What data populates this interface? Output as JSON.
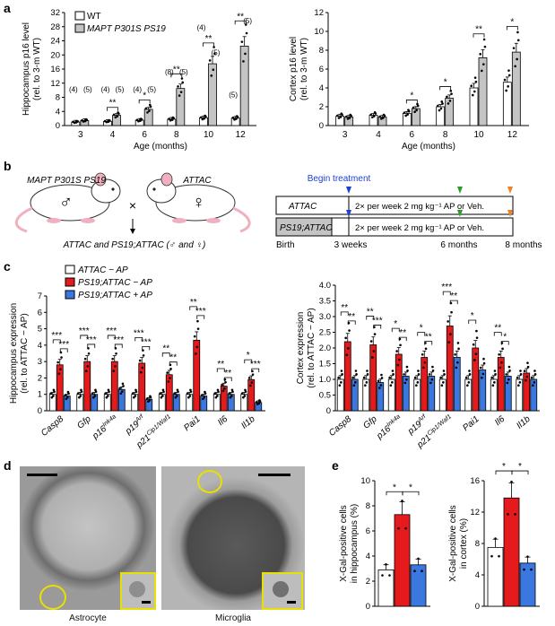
{
  "panels": {
    "a": "a",
    "b": "b",
    "c": "c",
    "d": "d",
    "e": "e"
  },
  "colors": {
    "wt": "#ffffff",
    "ps19": "#c4c4c4",
    "minus_ap": "#ffffff",
    "ps19_minus": "#e41a1c",
    "ps19_plus": "#3a78e0",
    "yellow": "#e8e000",
    "arrow_blue": "#1f3fcf",
    "arrow_green": "#2a9d2a",
    "arrow_orange": "#f08020",
    "mouse_pink": "#f0b0c0"
  },
  "panel_a": {
    "legend": [
      "WT",
      "MAPT P301S PS19"
    ],
    "left": {
      "ylabel_line1": "Hippocampus p16 level",
      "ylabel_line2": "(rel. to 3-m WT)",
      "xlabel": "Age (months)",
      "ages": [
        "3",
        "4",
        "6",
        "8",
        "10",
        "12"
      ],
      "yticks": [
        "0",
        "4",
        "8",
        "12",
        "16",
        "20",
        "24",
        "28",
        "32"
      ],
      "ylim": [
        0,
        32
      ],
      "wt": [
        1.0,
        1.2,
        1.5,
        1.8,
        2.2,
        2.1
      ],
      "ps19": [
        1.4,
        2.9,
        4.6,
        10.5,
        17.5,
        22.5
      ],
      "n_labels": [
        "(4)",
        "(5)",
        "(4)",
        "(5)",
        "(4)",
        "(5)",
        "(8)",
        "(5)",
        "(4)",
        "(5)",
        "(5)",
        "(5)"
      ],
      "sig": [
        "**",
        "*",
        "**",
        "**",
        "**"
      ]
    },
    "right": {
      "ylabel_line1": "Cortex p16 level",
      "ylabel_line2": "(rel. to 3-m WT)",
      "xlabel": "Age (months)",
      "ages": [
        "3",
        "4",
        "6",
        "8",
        "10",
        "12"
      ],
      "yticks": [
        "0",
        "2",
        "4",
        "6",
        "8",
        "10",
        "12"
      ],
      "ylim": [
        0,
        12
      ],
      "wt": [
        1.0,
        1.1,
        1.3,
        2.0,
        4.0,
        4.6
      ],
      "ps19": [
        0.9,
        0.9,
        1.8,
        2.9,
        7.2,
        7.8
      ],
      "sig": [
        "*",
        "*",
        "**",
        "*"
      ]
    }
  },
  "panel_b": {
    "mouse_left": "MAPT P301S PS19",
    "mouse_right": "ATTAC",
    "cross": "×",
    "offspring": "ATTAC and PS19;ATTAC (♂ and ♀)",
    "male": "♂",
    "female": "♀",
    "begin": "Begin treatment",
    "row1_label": "ATTAC",
    "row2_label": "PS19;ATTAC",
    "treatment": "2× per week 2 mg kg⁻¹ AP or Veh.",
    "birth": "Birth",
    "t3": "3 weeks",
    "t6": "6 months",
    "t8": "8 months"
  },
  "panel_c": {
    "legend": [
      "ATTAC − AP",
      "PS19;ATTAC − AP",
      "PS19;ATTAC + AP"
    ],
    "left": {
      "ylabel_line1": "Hippocampus expression",
      "ylabel_line2": "(rel. to ATTAC − AP)",
      "yticks": [
        "0",
        "1",
        "2",
        "3",
        "4",
        "5",
        "6",
        "7"
      ],
      "ylim": [
        0,
        7
      ],
      "genes": [
        "Casp8",
        "Gfp",
        "p16Ink4a",
        "p19Arf",
        "p21Cip1/Waf1",
        "Pai1",
        "Il6",
        "Il1b"
      ],
      "attac_minus": [
        1.0,
        1.0,
        1.0,
        1.0,
        1.0,
        1.0,
        1.0,
        1.0
      ],
      "ps19_minus": [
        2.8,
        3.0,
        3.0,
        2.9,
        2.2,
        4.3,
        1.5,
        1.9
      ],
      "ps19_plus": [
        0.9,
        1.0,
        1.3,
        0.7,
        1.0,
        0.9,
        1.0,
        0.5
      ],
      "sig_top": [
        "***",
        "***",
        "***",
        "***",
        "**",
        "**",
        "**",
        "*"
      ],
      "sig_bottom": [
        "***",
        "***",
        "***",
        "***",
        "**",
        "***",
        "**",
        "***"
      ]
    },
    "right": {
      "ylabel_line1": "Cortex expression",
      "ylabel_line2": "(rel. to ATTAC − AP)",
      "yticks": [
        "0",
        "0.5",
        "1.0",
        "1.5",
        "2.0",
        "2.5",
        "3.0",
        "3.5",
        "4.0"
      ],
      "ylim": [
        0,
        4.0
      ],
      "genes": [
        "Casp8",
        "Gfp",
        "p16Ink4a",
        "p19Arf",
        "p21Cip1/Waf1",
        "Pai1",
        "Il6",
        "Il1b"
      ],
      "attac_minus": [
        1.0,
        1.0,
        1.0,
        1.0,
        1.0,
        1.0,
        1.0,
        1.0
      ],
      "ps19_minus": [
        2.2,
        2.1,
        1.8,
        1.7,
        2.7,
        2.0,
        1.7,
        1.2
      ],
      "ps19_plus": [
        1.0,
        0.9,
        1.1,
        1.1,
        1.7,
        1.3,
        1.1,
        1.0
      ],
      "sig_top": [
        "**",
        "**",
        "*",
        "*",
        "***",
        "*",
        "**",
        ""
      ],
      "sig_bottom": [
        "**",
        "***",
        "**",
        "**",
        "**",
        "",
        "*",
        ""
      ]
    }
  },
  "panel_d": {
    "caption_left": "Astrocyte",
    "caption_right": "Microglia"
  },
  "panel_e": {
    "left": {
      "ylabel_line1": "X-Gal-positive cells",
      "ylabel_line2": "in hippocampus (%)",
      "yticks": [
        "0",
        "2",
        "4",
        "6",
        "8",
        "10"
      ],
      "ylim": [
        0,
        10
      ],
      "values": [
        2.9,
        7.3,
        3.3
      ],
      "sig": [
        "*",
        "*"
      ]
    },
    "right": {
      "ylabel_line1": "X-Gal-positive cells",
      "ylabel_line2": "in cortex (%)",
      "yticks": [
        "0",
        "4",
        "8",
        "12",
        "16"
      ],
      "ylim": [
        0,
        16
      ],
      "values": [
        7.5,
        13.8,
        5.5
      ],
      "sig": [
        "*",
        "*"
      ]
    }
  },
  "chart_data": [
    {
      "type": "bar",
      "title": "Hippocampus p16 level",
      "xlabel": "Age (months)",
      "ylabel": "Hippocampus p16 level (rel. to 3-m WT)",
      "categories": [
        "3",
        "4",
        "6",
        "8",
        "10",
        "12"
      ],
      "ylim": [
        0,
        32
      ],
      "series": [
        {
          "name": "WT",
          "values": [
            1.0,
            1.2,
            1.5,
            1.8,
            2.2,
            2.1
          ]
        },
        {
          "name": "MAPT P301S PS19",
          "values": [
            1.4,
            2.9,
            4.6,
            10.5,
            17.5,
            22.5
          ]
        }
      ]
    },
    {
      "type": "bar",
      "title": "Cortex p16 level",
      "xlabel": "Age (months)",
      "ylabel": "Cortex p16 level (rel. to 3-m WT)",
      "categories": [
        "3",
        "4",
        "6",
        "8",
        "10",
        "12"
      ],
      "ylim": [
        0,
        12
      ],
      "series": [
        {
          "name": "WT",
          "values": [
            1.0,
            1.1,
            1.3,
            2.0,
            4.0,
            4.6
          ]
        },
        {
          "name": "MAPT P301S PS19",
          "values": [
            0.9,
            0.9,
            1.8,
            2.9,
            7.2,
            7.8
          ]
        }
      ]
    },
    {
      "type": "bar",
      "title": "Hippocampus expression",
      "ylabel": "Hippocampus expression (rel. to ATTAC − AP)",
      "categories": [
        "Casp8",
        "Gfp",
        "p16Ink4a",
        "p19Arf",
        "p21Cip1/Waf1",
        "Pai1",
        "Il6",
        "Il1b"
      ],
      "ylim": [
        0,
        7
      ],
      "series": [
        {
          "name": "ATTAC − AP",
          "values": [
            1.0,
            1.0,
            1.0,
            1.0,
            1.0,
            1.0,
            1.0,
            1.0
          ]
        },
        {
          "name": "PS19;ATTAC − AP",
          "values": [
            2.8,
            3.0,
            3.0,
            2.9,
            2.2,
            4.3,
            1.5,
            1.9
          ]
        },
        {
          "name": "PS19;ATTAC + AP",
          "values": [
            0.9,
            1.0,
            1.3,
            0.7,
            1.0,
            0.9,
            1.0,
            0.5
          ]
        }
      ]
    },
    {
      "type": "bar",
      "title": "Cortex expression",
      "ylabel": "Cortex expression (rel. to ATTAC − AP)",
      "categories": [
        "Casp8",
        "Gfp",
        "p16Ink4a",
        "p19Arf",
        "p21Cip1/Waf1",
        "Pai1",
        "Il6",
        "Il1b"
      ],
      "ylim": [
        0,
        4.0
      ],
      "series": [
        {
          "name": "ATTAC − AP",
          "values": [
            1.0,
            1.0,
            1.0,
            1.0,
            1.0,
            1.0,
            1.0,
            1.0
          ]
        },
        {
          "name": "PS19;ATTAC − AP",
          "values": [
            2.2,
            2.1,
            1.8,
            1.7,
            2.7,
            2.0,
            1.7,
            1.2
          ]
        },
        {
          "name": "PS19;ATTAC + AP",
          "values": [
            1.0,
            0.9,
            1.1,
            1.1,
            1.7,
            1.3,
            1.1,
            1.0
          ]
        }
      ]
    },
    {
      "type": "bar",
      "title": "X-Gal-positive cells in hippocampus (%)",
      "categories": [
        "ATTAC − AP",
        "PS19;ATTAC − AP",
        "PS19;ATTAC + AP"
      ],
      "ylim": [
        0,
        10
      ],
      "values": [
        2.9,
        7.3,
        3.3
      ]
    },
    {
      "type": "bar",
      "title": "X-Gal-positive cells in cortex (%)",
      "categories": [
        "ATTAC − AP",
        "PS19;ATTAC − AP",
        "PS19;ATTAC + AP"
      ],
      "ylim": [
        0,
        16
      ],
      "values": [
        7.5,
        13.8,
        5.5
      ]
    }
  ]
}
